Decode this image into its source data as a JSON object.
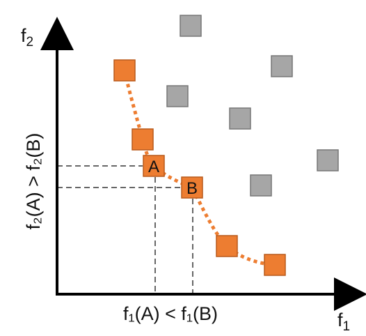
{
  "axes": {
    "x_label_main": "f",
    "x_label_sub": "1",
    "y_label_main": "f",
    "y_label_sub": "2"
  },
  "comparisons": {
    "x_text": "f₁(A) < f₁(B)",
    "y_text": "f₂(A) > f₂(B)"
  },
  "points": {
    "label_a": "A",
    "label_b": "B"
  },
  "colors": {
    "pareto_fill": "#ED7D31",
    "pareto_stroke": "#B85A1B",
    "dominated_fill": "#A6A6A6",
    "dominated_stroke": "#767676",
    "axis": "#000000",
    "guide": "#666666"
  }
}
